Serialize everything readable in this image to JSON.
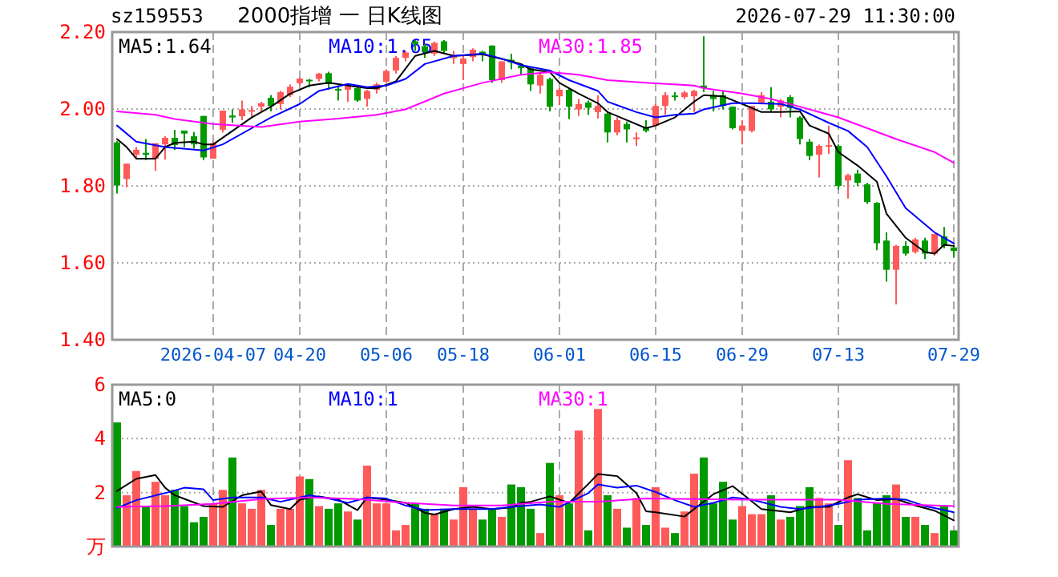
{
  "chart_data": [
    {
      "type": "candlestick",
      "title": "2000指增 一 日K线图",
      "subtitle": "sz159553",
      "annotations": [
        "2026-07-29 11:30:00"
      ],
      "categories": [
        null,
        null,
        null,
        null,
        null,
        null,
        null,
        null,
        null,
        null,
        "2026-04-07",
        null,
        null,
        null,
        null,
        null,
        null,
        null,
        null,
        "04-20",
        null,
        null,
        null,
        null,
        null,
        null,
        null,
        null,
        "05-06",
        null,
        null,
        null,
        null,
        null,
        null,
        null,
        "05-18",
        null,
        null,
        null,
        null,
        null,
        null,
        null,
        null,
        null,
        "06-01",
        null,
        null,
        null,
        null,
        null,
        null,
        null,
        null,
        null,
        "06-15",
        null,
        null,
        null,
        null,
        null,
        null,
        null,
        null,
        "06-29",
        null,
        null,
        null,
        null,
        null,
        null,
        null,
        null,
        null,
        "07-13",
        null,
        null,
        null,
        null,
        null,
        null,
        null,
        null,
        null,
        null,
        null,
        "07-29"
      ],
      "ohlc": [
        [
          1.913,
          1.917,
          1.78,
          1.801
        ],
        [
          1.818,
          1.858,
          1.797,
          1.858
        ],
        [
          1.881,
          1.901,
          1.869,
          1.894
        ],
        [
          1.886,
          1.922,
          1.867,
          1.881
        ],
        [
          1.871,
          1.911,
          1.839,
          1.911
        ],
        [
          1.908,
          1.929,
          1.869,
          1.925
        ],
        [
          1.925,
          1.946,
          1.894,
          1.906
        ],
        [
          1.944,
          1.944,
          1.901,
          1.936
        ],
        [
          1.929,
          1.94,
          1.897,
          1.908
        ],
        [
          1.982,
          1.982,
          1.867,
          1.874
        ],
        [
          1.871,
          1.915,
          1.871,
          1.911
        ],
        [
          1.946,
          1.996,
          1.939,
          1.996
        ],
        [
          1.983,
          1.999,
          1.964,
          1.978
        ],
        [
          1.981,
          2.022,
          1.971,
          1.999
        ],
        [
          1.994,
          2.008,
          1.978,
          1.997
        ],
        [
          2.006,
          2.019,
          1.992,
          2.015
        ],
        [
          2.029,
          2.036,
          1.994,
          2.008
        ],
        [
          2.013,
          2.047,
          1.999,
          2.044
        ],
        [
          2.036,
          2.064,
          2.031,
          2.058
        ],
        [
          2.067,
          2.082,
          2.061,
          2.079
        ],
        [
          2.076,
          2.078,
          2.057,
          2.074
        ],
        [
          2.078,
          2.094,
          2.072,
          2.092
        ],
        [
          2.093,
          2.097,
          2.05,
          2.065
        ],
        [
          2.052,
          2.061,
          2.022,
          2.05
        ],
        [
          2.05,
          2.065,
          2.019,
          2.061
        ],
        [
          2.054,
          2.057,
          2.019,
          2.022
        ],
        [
          2.026,
          2.05,
          2.006,
          2.047
        ],
        [
          2.05,
          2.068,
          2.04,
          2.064
        ],
        [
          2.071,
          2.103,
          2.068,
          2.099
        ],
        [
          2.1,
          2.138,
          2.092,
          2.133
        ],
        [
          2.133,
          2.151,
          2.124,
          2.147
        ],
        [
          2.176,
          2.179,
          2.151,
          2.169
        ],
        [
          2.163,
          2.169,
          2.133,
          2.149
        ],
        [
          2.144,
          2.175,
          2.138,
          2.172
        ],
        [
          2.176,
          2.179,
          2.144,
          2.151
        ],
        [
          2.133,
          2.151,
          2.117,
          2.136
        ],
        [
          2.117,
          2.138,
          2.075,
          2.131
        ],
        [
          2.135,
          2.158,
          2.124,
          2.154
        ],
        [
          2.149,
          2.151,
          2.124,
          2.142
        ],
        [
          2.165,
          2.165,
          2.068,
          2.075
        ],
        [
          2.075,
          2.124,
          2.068,
          2.124
        ],
        [
          2.128,
          2.144,
          2.103,
          2.121
        ],
        [
          2.113,
          2.117,
          2.089,
          2.106
        ],
        [
          2.106,
          2.11,
          2.047,
          2.064
        ],
        [
          2.061,
          2.092,
          2.04,
          2.089
        ],
        [
          2.078,
          2.082,
          1.994,
          2.006
        ],
        [
          2.033,
          2.054,
          2.01,
          2.05
        ],
        [
          2.05,
          2.054,
          1.974,
          2.006
        ],
        [
          1.999,
          2.026,
          1.982,
          2.013
        ],
        [
          2.017,
          2.022,
          1.985,
          2.003
        ],
        [
          1.992,
          2.036,
          1.975,
          2.008
        ],
        [
          1.988,
          1.992,
          1.913,
          1.939
        ],
        [
          1.939,
          1.978,
          1.932,
          1.971
        ],
        [
          1.961,
          1.967,
          1.913,
          1.947
        ],
        [
          1.924,
          1.939,
          1.904,
          1.926
        ],
        [
          1.953,
          1.971,
          1.939,
          1.943
        ],
        [
          1.957,
          2.013,
          1.953,
          2.008
        ],
        [
          2.008,
          2.044,
          1.985,
          2.036
        ],
        [
          2.035,
          2.044,
          2.022,
          2.032
        ],
        [
          2.031,
          2.047,
          2.026,
          2.043
        ],
        [
          2.033,
          2.05,
          1.992,
          2.047
        ],
        [
          2.061,
          2.189,
          2.044,
          2.054
        ],
        [
          2.036,
          2.047,
          1.994,
          2.026
        ],
        [
          2.036,
          2.047,
          1.999,
          2.008
        ],
        [
          2.006,
          2.006,
          1.947,
          1.95
        ],
        [
          1.943,
          1.971,
          1.908,
          1.957
        ],
        [
          1.943,
          2.008,
          1.939,
          2.008
        ],
        [
          2.017,
          2.044,
          2.013,
          2.036
        ],
        [
          2.019,
          2.057,
          1.992,
          1.999
        ],
        [
          2.006,
          2.026,
          1.978,
          2.022
        ],
        [
          2.031,
          2.036,
          1.978,
          2.003
        ],
        [
          1.978,
          1.981,
          1.908,
          1.922
        ],
        [
          1.915,
          1.922,
          1.867,
          1.878
        ],
        [
          1.881,
          1.908,
          1.822,
          1.904
        ],
        [
          1.903,
          1.957,
          1.883,
          1.906
        ],
        [
          1.904,
          1.908,
          1.79,
          1.8
        ],
        [
          1.814,
          1.832,
          1.767,
          1.828
        ],
        [
          1.832,
          1.842,
          1.8,
          1.808
        ],
        [
          1.804,
          1.808,
          1.753,
          1.758
        ],
        [
          1.756,
          1.758,
          1.633,
          1.651
        ],
        [
          1.658,
          1.679,
          1.551,
          1.582
        ],
        [
          1.582,
          1.647,
          1.492,
          1.644
        ],
        [
          1.644,
          1.656,
          1.619,
          1.624
        ],
        [
          1.628,
          1.665,
          1.624,
          1.661
        ],
        [
          1.658,
          1.665,
          1.61,
          1.624
        ],
        [
          1.624,
          1.675,
          1.619,
          1.675
        ],
        [
          1.669,
          1.693,
          1.638,
          1.644
        ],
        [
          1.64,
          1.647,
          1.614,
          1.631
        ]
      ],
      "colors": [
        "#009900",
        "#ff5a5a",
        "#ff5a5a",
        "#009900",
        "#ff5a5a",
        "#ff5a5a",
        "#009900",
        "#009900",
        "#009900",
        "#009900",
        "#ff5a5a",
        "#ff5a5a",
        "#009900",
        "#ff5a5a",
        "#ff5a5a",
        "#ff5a5a",
        "#009900",
        "#ff5a5a",
        "#ff5a5a",
        "#ff5a5a",
        "#009900",
        "#ff5a5a",
        "#009900",
        "#009900",
        "#ff5a5a",
        "#009900",
        "#ff5a5a",
        "#ff5a5a",
        "#ff5a5a",
        "#ff5a5a",
        "#ff5a5a",
        "#009900",
        "#009900",
        "#ff5a5a",
        "#009900",
        "#ff5a5a",
        "#ff5a5a",
        "#ff5a5a",
        "#009900",
        "#009900",
        "#ff5a5a",
        "#009900",
        "#009900",
        "#009900",
        "#ff5a5a",
        "#009900",
        "#ff5a5a",
        "#009900",
        "#ff5a5a",
        "#009900",
        "#ff5a5a",
        "#009900",
        "#ff5a5a",
        "#009900",
        "#ff5a5a",
        "#009900",
        "#ff5a5a",
        "#ff5a5a",
        "#009900",
        "#ff5a5a",
        "#ff5a5a",
        "#009900",
        "#009900",
        "#009900",
        "#009900",
        "#ff5a5a",
        "#ff5a5a",
        "#ff5a5a",
        "#009900",
        "#ff5a5a",
        "#009900",
        "#009900",
        "#009900",
        "#ff5a5a",
        "#ff5a5a",
        "#009900",
        "#ff5a5a",
        "#009900",
        "#009900",
        "#009900",
        "#009900",
        "#ff5a5a",
        "#009900",
        "#ff5a5a",
        "#009900",
        "#ff5a5a",
        "#009900",
        "#009900"
      ],
      "series": [
        {
          "type": "line",
          "name": "MA5:1.64",
          "color": "#000000",
          "values": [
            1.922,
            1.901,
            1.871,
            null,
            1.871,
            1.901,
            1.912,
            null,
            1.915,
            1.908,
            1.908,
            null,
            1.943,
            null,
            1.978,
            null,
            2.006,
            null,
            2.04,
            null,
            2.061,
            null,
            2.068,
            null,
            2.061,
            null,
            2.054,
            2.054,
            null,
            2.072,
            null,
            2.138,
            null,
            2.151,
            null,
            2.138,
            null,
            null,
            2.142,
            null,
            null,
            2.124,
            2.117,
            2.103,
            null,
            2.096,
            2.068,
            null,
            2.04,
            null,
            2.015,
            1.992,
            null,
            1.971,
            null,
            1.95,
            1.957,
            null,
            1.978,
            null,
            2.019,
            2.036,
            null,
            2.033,
            null,
            2.013,
            null,
            1.992,
            null,
            1.992,
            null,
            1.994,
            1.957,
            null,
            1.936,
            1.888,
            null,
            1.853,
            null,
            1.811,
            1.728,
            null,
            1.665,
            null,
            1.628,
            1.624,
            1.647,
            1.644
          ]
        },
        {
          "type": "line",
          "name": "MA10:1.65",
          "color": "#0000ff",
          "values": [
            1.957,
            null,
            1.915,
            null,
            null,
            1.901,
            null,
            null,
            null,
            1.892,
            null,
            1.908,
            null,
            null,
            1.95,
            null,
            1.978,
            null,
            null,
            2.013,
            null,
            2.047,
            null,
            null,
            2.065,
            null,
            2.057,
            null,
            2.061,
            null,
            2.078,
            null,
            2.117,
            null,
            null,
            2.138,
            null,
            null,
            2.144,
            null,
            2.131,
            null,
            2.114,
            null,
            null,
            2.1,
            null,
            2.075,
            null,
            null,
            2.047,
            2.019,
            null,
            null,
            1.992,
            null,
            1.978,
            null,
            1.985,
            null,
            1.988,
            1.999,
            null,
            null,
            2.015,
            null,
            2.015,
            null,
            null,
            2.013,
            null,
            1.999,
            null,
            null,
            1.964,
            null,
            1.943,
            null,
            1.901,
            null,
            1.825,
            null,
            1.742,
            null,
            null,
            1.679,
            null,
            1.651
          ]
        },
        {
          "type": "line",
          "name": "MA30:1.85",
          "color": "#ff00ff",
          "values": [
            1.994,
            null,
            null,
            null,
            1.985,
            null,
            1.974,
            null,
            null,
            null,
            1.961,
            null,
            null,
            null,
            null,
            1.953,
            null,
            null,
            null,
            1.967,
            null,
            null,
            null,
            1.975,
            null,
            null,
            null,
            1.985,
            null,
            null,
            1.999,
            null,
            null,
            null,
            2.04,
            null,
            null,
            null,
            2.068,
            null,
            null,
            null,
            2.089,
            null,
            null,
            2.096,
            null,
            null,
            2.089,
            null,
            null,
            2.075,
            null,
            null,
            null,
            2.068,
            null,
            null,
            null,
            null,
            2.061,
            2.054,
            null,
            null,
            null,
            2.04,
            null,
            null,
            2.026,
            null,
            null,
            2.006,
            null,
            null,
            null,
            1.978,
            null,
            null,
            1.95,
            null,
            null,
            1.922,
            null,
            null,
            null,
            1.888,
            null,
            1.86
          ]
        }
      ],
      "ylim": [
        1.4,
        2.2
      ],
      "yticks": [
        {
          "value": 1.4,
          "label": "1.40"
        },
        {
          "value": 1.6,
          "label": "1.60"
        },
        {
          "value": 1.8,
          "label": "1.80"
        },
        {
          "value": 2.0,
          "label": "2.00"
        },
        {
          "value": 2.2,
          "label": "2.20"
        }
      ],
      "grid": true,
      "legend": "top left"
    },
    {
      "type": "bar",
      "categories": [
        null,
        null,
        null,
        null,
        null,
        null,
        null,
        null,
        null,
        null,
        null,
        null,
        null,
        null,
        null,
        null,
        null,
        null,
        null,
        null,
        null,
        null,
        null,
        null,
        null,
        null,
        null,
        null,
        null,
        null,
        null,
        null,
        null,
        null,
        null,
        null,
        null,
        null,
        null,
        null,
        null,
        null,
        null,
        null,
        null,
        null,
        null,
        null,
        null,
        null,
        null,
        null,
        null,
        null,
        null,
        null,
        null,
        null,
        null,
        null,
        null,
        null,
        null,
        null,
        null,
        null,
        null,
        null,
        null,
        null,
        null,
        null,
        null,
        null,
        null,
        null,
        null,
        null,
        null,
        null,
        null,
        null,
        null,
        null,
        null,
        null,
        null,
        null
      ],
      "values": [
        4.6,
        1.9,
        2.8,
        1.5,
        2.4,
        1.9,
        2.1,
        1.5,
        0.9,
        1.1,
        1.6,
        2.1,
        3.3,
        1.6,
        1.4,
        2.1,
        0.8,
        1.4,
        1.4,
        2.6,
        2.5,
        1.5,
        1.4,
        1.6,
        1.3,
        1.0,
        3.0,
        1.6,
        1.6,
        0.6,
        0.8,
        1.6,
        1.4,
        1.2,
        1.4,
        1.0,
        2.2,
        1.4,
        1.0,
        1.4,
        1.1,
        2.3,
        2.2,
        1.4,
        0.5,
        3.1,
        1.9,
        1.6,
        4.3,
        0.6,
        5.1,
        1.9,
        1.4,
        0.7,
        1.8,
        0.8,
        2.2,
        0.7,
        0.5,
        1.3,
        2.7,
        3.3,
        1.6,
        2.4,
        1.0,
        1.5,
        1.2,
        1.2,
        1.9,
        1.0,
        1.1,
        1.5,
        2.2,
        1.8,
        1.6,
        0.8,
        3.2,
        1.8,
        0.6,
        1.6,
        1.9,
        2.3,
        1.1,
        1.1,
        0.8,
        0.5,
        1.5,
        0.6
      ],
      "colors": [
        "#009900",
        "#ff5a5a",
        "#ff5a5a",
        "#009900",
        "#ff5a5a",
        "#ff5a5a",
        "#009900",
        "#009900",
        "#009900",
        "#009900",
        "#ff5a5a",
        "#ff5a5a",
        "#009900",
        "#ff5a5a",
        "#ff5a5a",
        "#ff5a5a",
        "#009900",
        "#ff5a5a",
        "#ff5a5a",
        "#ff5a5a",
        "#009900",
        "#ff5a5a",
        "#009900",
        "#009900",
        "#ff5a5a",
        "#009900",
        "#ff5a5a",
        "#ff5a5a",
        "#ff5a5a",
        "#ff5a5a",
        "#ff5a5a",
        "#009900",
        "#009900",
        "#ff5a5a",
        "#009900",
        "#ff5a5a",
        "#ff5a5a",
        "#ff5a5a",
        "#009900",
        "#009900",
        "#ff5a5a",
        "#009900",
        "#009900",
        "#009900",
        "#ff5a5a",
        "#009900",
        "#ff5a5a",
        "#009900",
        "#ff5a5a",
        "#009900",
        "#ff5a5a",
        "#009900",
        "#ff5a5a",
        "#009900",
        "#ff5a5a",
        "#009900",
        "#ff5a5a",
        "#ff5a5a",
        "#009900",
        "#ff5a5a",
        "#ff5a5a",
        "#009900",
        "#009900",
        "#009900",
        "#009900",
        "#ff5a5a",
        "#ff5a5a",
        "#ff5a5a",
        "#009900",
        "#ff5a5a",
        "#009900",
        "#009900",
        "#009900",
        "#ff5a5a",
        "#ff5a5a",
        "#009900",
        "#ff5a5a",
        "#009900",
        "#009900",
        "#009900",
        "#009900",
        "#ff5a5a",
        "#009900",
        "#ff5a5a",
        "#009900",
        "#ff5a5a",
        "#009900",
        "#009900"
      ],
      "series": [
        {
          "type": "line",
          "name": "MA5:0",
          "color": "#000000",
          "values": [
            2.06,
            null,
            2.51,
            null,
            2.65,
            2.18,
            1.9,
            null,
            null,
            1.5,
            null,
            1.47,
            null,
            1.9,
            null,
            2.04,
            1.54,
            null,
            1.39,
            1.74,
            null,
            1.86,
            null,
            1.74,
            null,
            1.35,
            1.82,
            null,
            1.74,
            null,
            1.62,
            null,
            1.25,
            1.19,
            null,
            1.39,
            null,
            1.47,
            null,
            1.39,
            null,
            1.45,
            1.62,
            1.66,
            null,
            1.86,
            null,
            1.62,
            null,
            2.32,
            2.69,
            null,
            2.61,
            null,
            1.98,
            1.31,
            1.27,
            null,
            null,
            1.11,
            1.39,
            null,
            1.94,
            null,
            2.24,
            1.96,
            null,
            1.39,
            null,
            null,
            1.27,
            null,
            1.47,
            null,
            1.47,
            null,
            1.82,
            1.94,
            null,
            1.72,
            null,
            1.76,
            null,
            1.52,
            null,
            1.33,
            null,
            0.97
          ]
        },
        {
          "type": "line",
          "name": "MA10:1",
          "color": "#0000ff",
          "values": [
            1.43,
            null,
            1.72,
            null,
            null,
            1.98,
            null,
            2.18,
            null,
            2.12,
            1.72,
            null,
            1.82,
            null,
            null,
            1.82,
            null,
            1.66,
            null,
            null,
            1.9,
            null,
            1.78,
            null,
            1.62,
            null,
            1.82,
            null,
            1.78,
            null,
            1.52,
            null,
            1.35,
            null,
            null,
            1.39,
            null,
            1.39,
            null,
            1.39,
            null,
            1.47,
            null,
            null,
            1.56,
            null,
            1.47,
            null,
            null,
            1.98,
            2.3,
            null,
            2.18,
            null,
            2.26,
            null,
            2.02,
            null,
            1.72,
            null,
            1.47,
            null,
            1.62,
            null,
            1.82,
            null,
            1.74,
            null,
            null,
            1.47,
            null,
            1.39,
            null,
            1.47,
            null,
            1.58,
            null,
            1.74,
            null,
            null,
            1.78,
            null,
            1.74,
            null,
            1.5,
            null,
            1.35,
            1.27
          ]
        },
        {
          "type": "line",
          "name": "MA30:1",
          "color": "#ff00ff",
          "values": [
            1.47,
            null,
            null,
            null,
            null,
            1.5,
            null,
            null,
            null,
            null,
            1.58,
            null,
            null,
            null,
            null,
            1.76,
            null,
            null,
            null,
            null,
            1.82,
            null,
            null,
            null,
            null,
            1.76,
            null,
            null,
            null,
            null,
            1.62,
            null,
            null,
            null,
            null,
            1.52,
            null,
            null,
            null,
            null,
            1.52,
            null,
            null,
            null,
            null,
            1.66,
            null,
            null,
            null,
            null,
            1.66,
            null,
            null,
            null,
            null,
            1.78,
            null,
            null,
            null,
            null,
            1.76,
            null,
            null,
            null,
            null,
            1.74,
            null,
            null,
            null,
            null,
            1.74,
            null,
            null,
            null,
            null,
            1.74,
            null,
            null,
            null,
            null,
            1.58,
            null,
            null,
            null,
            null,
            null,
            null,
            1.5
          ]
        }
      ],
      "ylim": [
        0,
        6
      ],
      "yticks": [
        {
          "value": 0,
          "label": "万"
        },
        2,
        4,
        6
      ],
      "grid": true,
      "legend": "top left",
      "tick_labels": "y"
    }
  ]
}
